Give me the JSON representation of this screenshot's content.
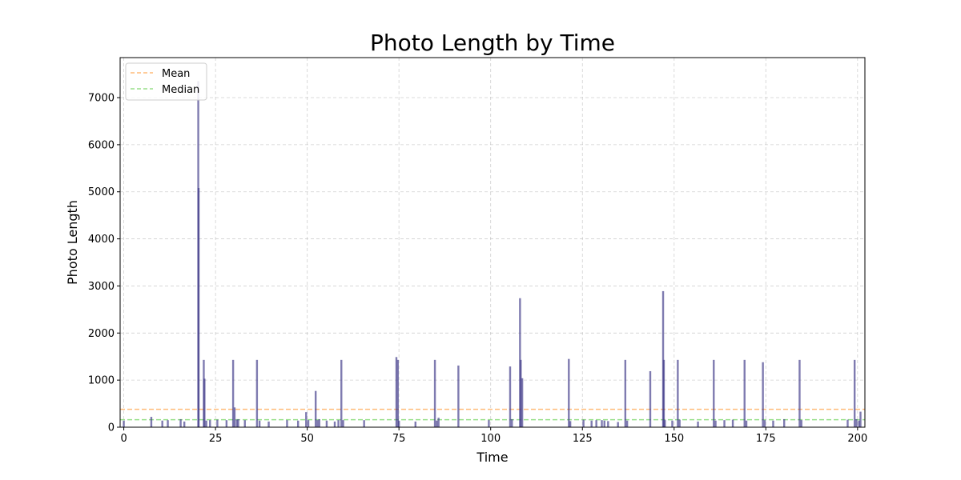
{
  "chart_data": {
    "type": "bar",
    "title": "Photo Length by Time",
    "xlabel": "Time",
    "ylabel": "Photo Length",
    "xlim": [
      -1,
      202
    ],
    "ylim": [
      0,
      7850
    ],
    "xticks": [
      0,
      25,
      50,
      75,
      100,
      125,
      150,
      175,
      200
    ],
    "yticks": [
      0,
      1000,
      2000,
      3000,
      4000,
      5000,
      6000,
      7000
    ],
    "grid": true,
    "grid_style": "dashed",
    "legend_position": "top-left",
    "bar_color": "#3b3486",
    "series": [
      {
        "name": "Photo Length",
        "points": [
          {
            "x": 0,
            "y": 140
          },
          {
            "x": 7.5,
            "y": 220
          },
          {
            "x": 10.5,
            "y": 140
          },
          {
            "x": 12,
            "y": 150
          },
          {
            "x": 15.5,
            "y": 170
          },
          {
            "x": 16.5,
            "y": 120
          },
          {
            "x": 20.3,
            "y": 7350
          },
          {
            "x": 20.4,
            "y": 5080
          },
          {
            "x": 21.8,
            "y": 1430
          },
          {
            "x": 22,
            "y": 1030
          },
          {
            "x": 22.5,
            "y": 140
          },
          {
            "x": 23.5,
            "y": 150
          },
          {
            "x": 25.5,
            "y": 160
          },
          {
            "x": 28,
            "y": 150
          },
          {
            "x": 29.8,
            "y": 1430
          },
          {
            "x": 30.2,
            "y": 420
          },
          {
            "x": 30.8,
            "y": 160
          },
          {
            "x": 31.2,
            "y": 170
          },
          {
            "x": 33,
            "y": 150
          },
          {
            "x": 36.3,
            "y": 1430
          },
          {
            "x": 37,
            "y": 140
          },
          {
            "x": 39.5,
            "y": 120
          },
          {
            "x": 44.5,
            "y": 150
          },
          {
            "x": 47.5,
            "y": 140
          },
          {
            "x": 49.7,
            "y": 320
          },
          {
            "x": 50.3,
            "y": 150
          },
          {
            "x": 52.3,
            "y": 770
          },
          {
            "x": 52.8,
            "y": 150
          },
          {
            "x": 53.3,
            "y": 170
          },
          {
            "x": 55.3,
            "y": 140
          },
          {
            "x": 57.5,
            "y": 120
          },
          {
            "x": 58.5,
            "y": 150
          },
          {
            "x": 59.3,
            "y": 1430
          },
          {
            "x": 59.8,
            "y": 150
          },
          {
            "x": 65.5,
            "y": 150
          },
          {
            "x": 74.3,
            "y": 1490
          },
          {
            "x": 74.7,
            "y": 1430
          },
          {
            "x": 75,
            "y": 140
          },
          {
            "x": 79.5,
            "y": 120
          },
          {
            "x": 84.8,
            "y": 1430
          },
          {
            "x": 85.3,
            "y": 140
          },
          {
            "x": 85.8,
            "y": 200
          },
          {
            "x": 91.2,
            "y": 1310
          },
          {
            "x": 99.5,
            "y": 150
          },
          {
            "x": 105.3,
            "y": 1290
          },
          {
            "x": 105.8,
            "y": 170
          },
          {
            "x": 108,
            "y": 2740
          },
          {
            "x": 108.2,
            "y": 1430
          },
          {
            "x": 108.6,
            "y": 1040
          },
          {
            "x": 121.3,
            "y": 1450
          },
          {
            "x": 121.7,
            "y": 130
          },
          {
            "x": 125.3,
            "y": 160
          },
          {
            "x": 127.5,
            "y": 140
          },
          {
            "x": 128.8,
            "y": 150
          },
          {
            "x": 130.3,
            "y": 150
          },
          {
            "x": 131,
            "y": 140
          },
          {
            "x": 132,
            "y": 130
          },
          {
            "x": 134.7,
            "y": 110
          },
          {
            "x": 136.7,
            "y": 1430
          },
          {
            "x": 137.2,
            "y": 140
          },
          {
            "x": 143.5,
            "y": 1190
          },
          {
            "x": 147,
            "y": 2890
          },
          {
            "x": 147.2,
            "y": 1430
          },
          {
            "x": 147.5,
            "y": 150
          },
          {
            "x": 149.5,
            "y": 140
          },
          {
            "x": 151,
            "y": 1430
          },
          {
            "x": 151.5,
            "y": 160
          },
          {
            "x": 156.5,
            "y": 120
          },
          {
            "x": 160.8,
            "y": 1430
          },
          {
            "x": 161.3,
            "y": 140
          },
          {
            "x": 163.7,
            "y": 150
          },
          {
            "x": 166,
            "y": 160
          },
          {
            "x": 169.2,
            "y": 1430
          },
          {
            "x": 169.7,
            "y": 140
          },
          {
            "x": 174.2,
            "y": 1380
          },
          {
            "x": 174.7,
            "y": 150
          },
          {
            "x": 177,
            "y": 140
          },
          {
            "x": 180,
            "y": 170
          },
          {
            "x": 184.2,
            "y": 1430
          },
          {
            "x": 184.7,
            "y": 150
          },
          {
            "x": 197.3,
            "y": 160
          },
          {
            "x": 199.2,
            "y": 1430
          },
          {
            "x": 199.7,
            "y": 170
          },
          {
            "x": 200.4,
            "y": 140
          },
          {
            "x": 200.8,
            "y": 330
          }
        ]
      }
    ],
    "reference_lines": [
      {
        "name": "Mean",
        "y": 380,
        "color": "#ffbb78",
        "style": "dashed"
      },
      {
        "name": "Median",
        "y": 160,
        "color": "#98df8a",
        "style": "dashed"
      }
    ]
  }
}
